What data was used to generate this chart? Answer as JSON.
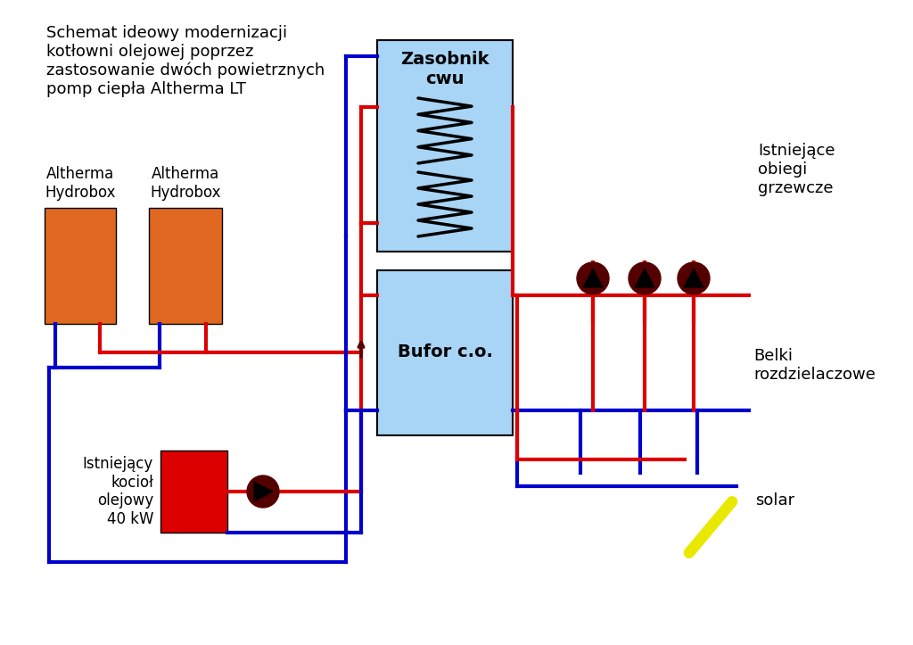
{
  "bg_color": "#ffffff",
  "title_text": "Schemat ideowy modernizacji\nkotłowni olejowej poprzez\nzastosowanie dwóch powietrznych\npomp ciepła Altherma LT",
  "hydrobox1_label": "Altherma\nHydrobox",
  "hydrobox2_label": "Altherma\nHydrobox",
  "zasobnik_label": "Zasobnik\ncwu",
  "bufor_label": "Bufor c.o.",
  "istniejace_label": "Istniejące\nobiegi\ngrzewcze",
  "belki_label": "Belki\nrozdzielaczowe",
  "kociol_label": "Istniejący\nkocioł\nolejowy\n40 kW",
  "solar_label": "solar",
  "red": "#dd0000",
  "blue": "#0000cc",
  "orange": "#e06820",
  "light_blue": "#a8d4f5",
  "dark_red": "#550000",
  "yellow": "#e8e800",
  "lw": 3.0
}
